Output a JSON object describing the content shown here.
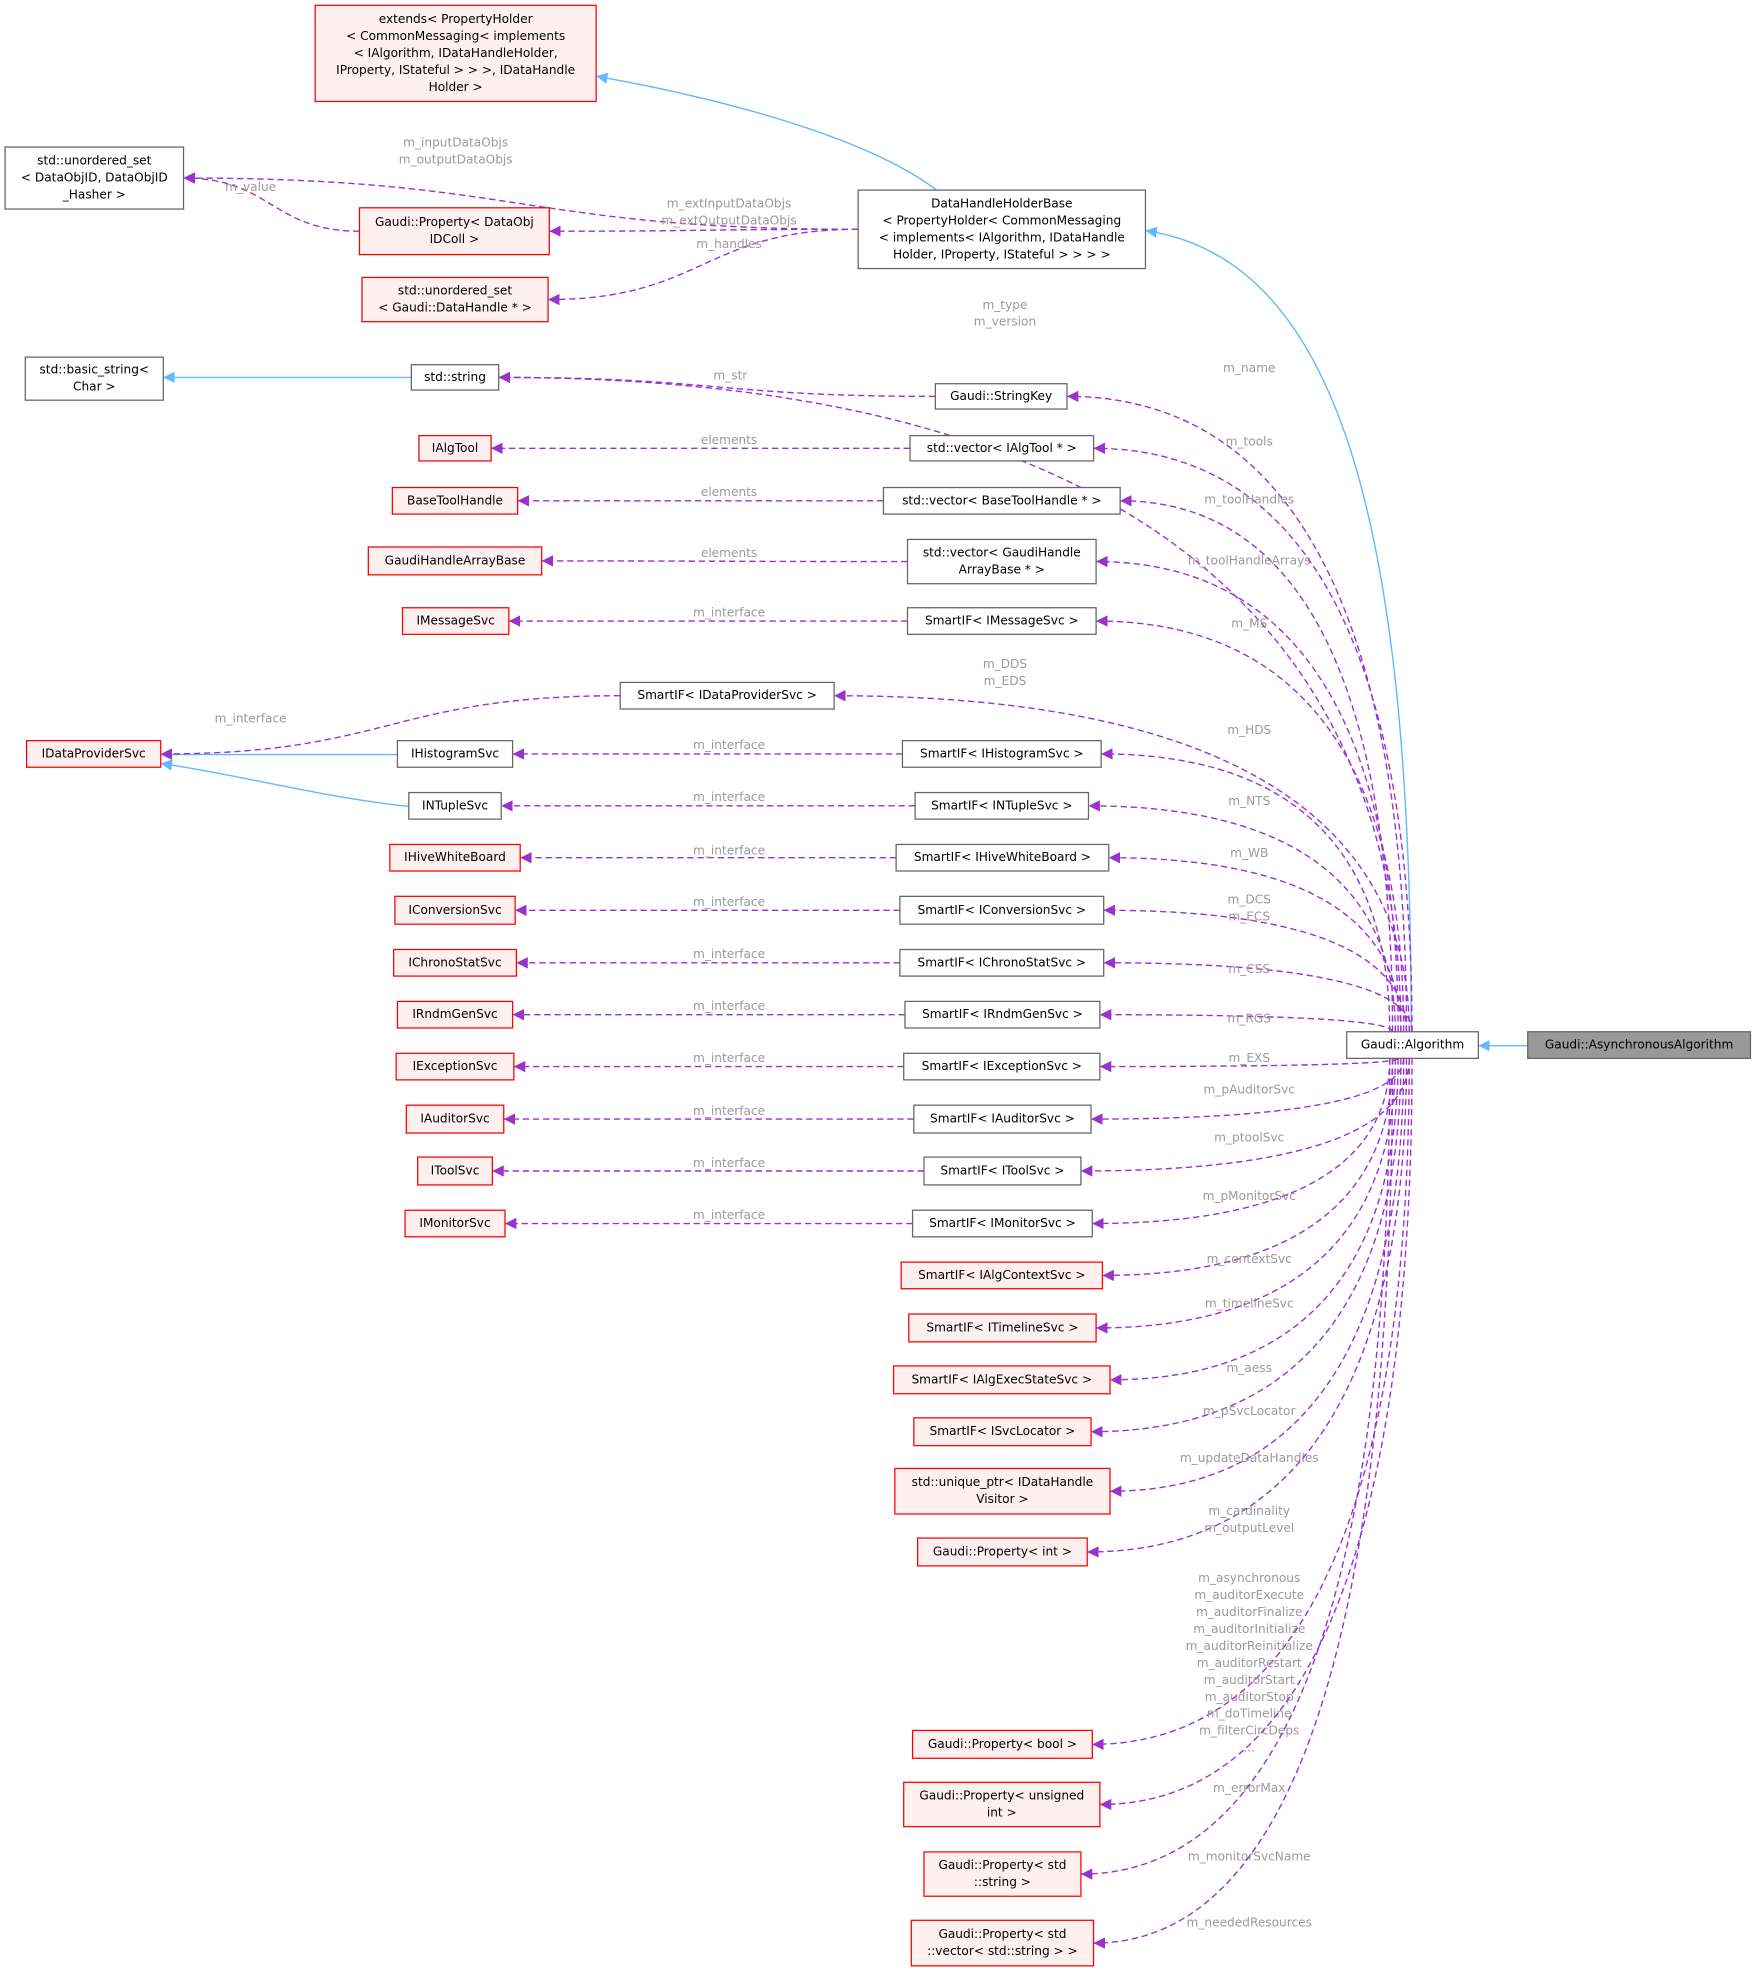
{
  "nodes": [
    {
      "label": [
        "Gaudi::AsynchronousAlgorithm"
      ]
    },
    {
      "label": [
        "Gaudi::Algorithm"
      ]
    },
    {
      "label": [
        "DataHandleHolderBase",
        "< PropertyHolder< CommonMessaging",
        "< implements< IAlgorithm, IDataHandle",
        "Holder, IProperty, IStateful > > > >"
      ]
    },
    {
      "label": [
        "extends< PropertyHolder",
        "< CommonMessaging< implements",
        "< IAlgorithm, IDataHandleHolder,",
        "IProperty, IStateful > > >, IDataHandle",
        "Holder >"
      ]
    },
    {
      "label": [
        "std::unordered_set",
        "< DataObjID, DataObjID",
        "_Hasher >"
      ]
    },
    {
      "label": [
        "Gaudi::Property< DataObj",
        "IDColl >"
      ]
    },
    {
      "label": [
        "std::unordered_set",
        "< Gaudi::DataHandle * >"
      ]
    },
    {
      "label": [
        "std::basic_string<",
        "Char >"
      ]
    },
    {
      "label": [
        "std::string"
      ]
    },
    {
      "label": [
        "Gaudi::StringKey"
      ]
    },
    {
      "label": [
        "IAlgTool"
      ]
    },
    {
      "label": [
        "std::vector< IAlgTool * >"
      ]
    },
    {
      "label": [
        "BaseToolHandle"
      ]
    },
    {
      "label": [
        "std::vector< BaseToolHandle * >"
      ]
    },
    {
      "label": [
        "GaudiHandleArrayBase"
      ]
    },
    {
      "label": [
        "std::vector< GaudiHandle",
        "ArrayBase * >"
      ]
    },
    {
      "label": [
        "IMessageSvc"
      ]
    },
    {
      "label": [
        "SmartIF< IMessageSvc >"
      ]
    },
    {
      "label": [
        "SmartIF< IDataProviderSvc >"
      ]
    },
    {
      "label": [
        "IDataProviderSvc"
      ]
    },
    {
      "label": [
        "IHistogramSvc"
      ]
    },
    {
      "label": [
        "SmartIF< IHistogramSvc >"
      ]
    },
    {
      "label": [
        "INTupleSvc"
      ]
    },
    {
      "label": [
        "SmartIF< INTupleSvc >"
      ]
    },
    {
      "label": [
        "IHiveWhiteBoard"
      ]
    },
    {
      "label": [
        "SmartIF< IHiveWhiteBoard >"
      ]
    },
    {
      "label": [
        "IConversionSvc"
      ]
    },
    {
      "label": [
        "SmartIF< IConversionSvc >"
      ]
    },
    {
      "label": [
        "IChronoStatSvc"
      ]
    },
    {
      "label": [
        "SmartIF< IChronoStatSvc >"
      ]
    },
    {
      "label": [
        "IRndmGenSvc"
      ]
    },
    {
      "label": [
        "SmartIF< IRndmGenSvc >"
      ]
    },
    {
      "label": [
        "IExceptionSvc"
      ]
    },
    {
      "label": [
        "SmartIF< IExceptionSvc >"
      ]
    },
    {
      "label": [
        "IAuditorSvc"
      ]
    },
    {
      "label": [
        "SmartIF< IAuditorSvc >"
      ]
    },
    {
      "label": [
        "IToolSvc"
      ]
    },
    {
      "label": [
        "SmartIF< IToolSvc >"
      ]
    },
    {
      "label": [
        "IMonitorSvc"
      ]
    },
    {
      "label": [
        "SmartIF< IMonitorSvc >"
      ]
    },
    {
      "label": [
        "SmartIF< IAlgContextSvc >"
      ]
    },
    {
      "label": [
        "SmartIF< ITimelineSvc >"
      ]
    },
    {
      "label": [
        "SmartIF< IAlgExecStateSvc >"
      ]
    },
    {
      "label": [
        "SmartIF< ISvcLocator >"
      ]
    },
    {
      "label": [
        "std::unique_ptr< IDataHandle",
        "Visitor >"
      ]
    },
    {
      "label": [
        "Gaudi::Property< int >"
      ]
    },
    {
      "label": [
        "Gaudi::Property< bool >"
      ]
    },
    {
      "label": [
        "Gaudi::Property< unsigned",
        "int >"
      ]
    },
    {
      "label": [
        "Gaudi::Property< std",
        "::string >"
      ]
    },
    {
      "label": [
        "Gaudi::Property< std",
        "::vector< std::string > >"
      ]
    }
  ],
  "edges": [
    {
      "label": [
        "m_inputDataObjs",
        "m_outputDataObjs"
      ]
    },
    {
      "label": [
        "m_value"
      ]
    },
    {
      "label": [
        "m_extInputDataObjs",
        "m_extOutputDataObjs"
      ]
    },
    {
      "label": [
        "m_handles"
      ]
    },
    {
      "label": [
        "m_type",
        "m_version"
      ]
    },
    {
      "label": [
        "m_str"
      ]
    },
    {
      "label": [
        "m_name"
      ]
    },
    {
      "label": [
        "elements"
      ]
    },
    {
      "label": [
        "m_tools"
      ]
    },
    {
      "label": [
        "elements"
      ]
    },
    {
      "label": [
        "m_toolHandles"
      ]
    },
    {
      "label": [
        "elements"
      ]
    },
    {
      "label": [
        "m_toolHandleArrays"
      ]
    },
    {
      "label": [
        "m_interface"
      ]
    },
    {
      "label": [
        "m_MS"
      ]
    },
    {
      "label": [
        "m_interface"
      ]
    },
    {
      "label": [
        "m_DDS",
        "m_EDS"
      ]
    },
    {
      "label": [
        "m_interface"
      ]
    },
    {
      "label": [
        "m_HDS"
      ]
    },
    {
      "label": [
        "m_interface"
      ]
    },
    {
      "label": [
        "m_NTS"
      ]
    },
    {
      "label": [
        "m_interface"
      ]
    },
    {
      "label": [
        "m_WB"
      ]
    },
    {
      "label": [
        "m_interface"
      ]
    },
    {
      "label": [
        "m_DCS",
        "m_ECS"
      ]
    },
    {
      "label": [
        "m_interface"
      ]
    },
    {
      "label": [
        "m_CSS"
      ]
    },
    {
      "label": [
        "m_interface"
      ]
    },
    {
      "label": [
        "m_RGS"
      ]
    },
    {
      "label": [
        "m_interface"
      ]
    },
    {
      "label": [
        "m_EXS"
      ]
    },
    {
      "label": [
        "m_interface"
      ]
    },
    {
      "label": [
        "m_pAuditorSvc"
      ]
    },
    {
      "label": [
        "m_interface"
      ]
    },
    {
      "label": [
        "m_ptoolSvc"
      ]
    },
    {
      "label": [
        "m_interface"
      ]
    },
    {
      "label": [
        "m_pMonitorSvc"
      ]
    },
    {
      "label": [
        "m_contextSvc"
      ]
    },
    {
      "label": [
        "m_timelineSvc"
      ]
    },
    {
      "label": [
        "m_aess"
      ]
    },
    {
      "label": [
        "m_pSvcLocator"
      ]
    },
    {
      "label": [
        "m_updateDataHandles"
      ]
    },
    {
      "label": [
        "m_cardinality",
        "m_outputLevel"
      ]
    },
    {
      "label": [
        "m_asynchronous",
        "m_auditorExecute",
        "m_auditorFinalize",
        "m_auditorInitialize",
        "m_auditorReinitialize",
        "m_auditorRestart",
        "m_auditorStart",
        "m_auditorStop",
        "m_doTimeline",
        "m_filterCircDeps",
        "..."
      ]
    },
    {
      "label": [
        "m_errorMax"
      ]
    },
    {
      "label": [
        "m_monitorSvcName"
      ]
    },
    {
      "label": [
        "m_neededResources"
      ]
    }
  ]
}
